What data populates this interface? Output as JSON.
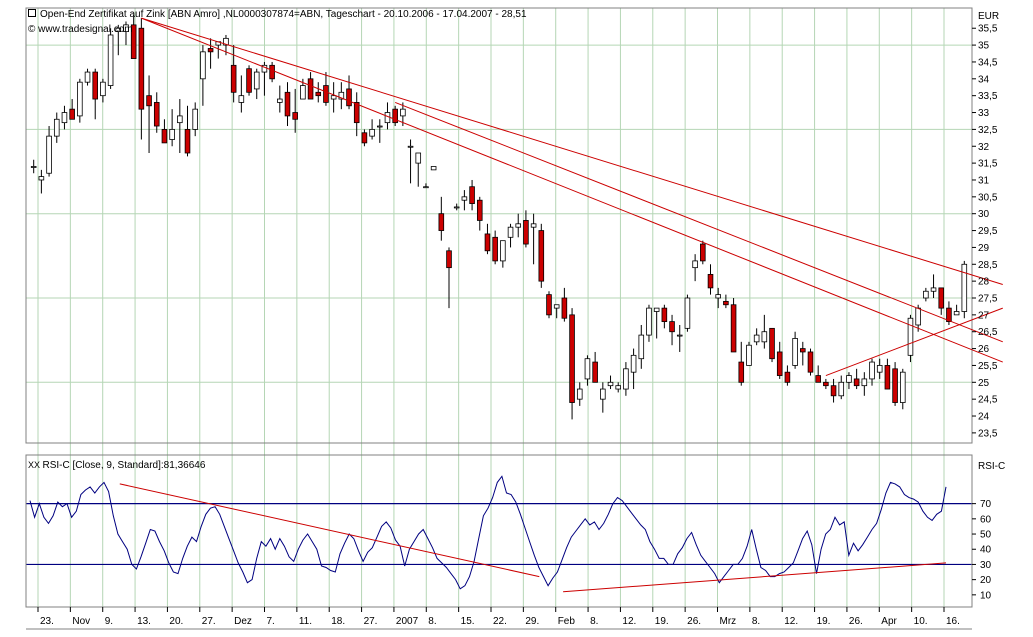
{
  "header": {
    "title": "Open-End Zertifikat auf Zink [ABN Amro] ,NL0000307874=ABN, Tageschart - 20.10.2006 - 17.04.2007 - 28,51",
    "source": "© www.tradesignal.com",
    "currency_label": "EUR",
    "rsi_title": "RSI-C [Close, 9, Standard]:81,36646",
    "rsi_axis_label": "RSI-C"
  },
  "colors": {
    "up_body": "#ffffff",
    "down_body": "#cc0000",
    "wick": "#000000",
    "trend": "#cc0000",
    "rsi_line": "#000080",
    "rsi_levels": "#000080",
    "grid": "#b5d6b5"
  },
  "chart_data": [
    {
      "type": "candlestick",
      "title": "Open-End Zertifikat auf Zink [ABN Amro] ,NL0000307874=ABN, Tageschart - 20.10.2006 - 17.04.2007 - 28,51",
      "ylabel": "EUR",
      "ylim": [
        23.2,
        36.1
      ],
      "y_ticks": [
        23.5,
        24,
        24.5,
        25,
        25.5,
        26,
        26.5,
        27,
        27.5,
        28,
        28.5,
        29,
        29.5,
        30,
        30.5,
        31,
        31.5,
        32,
        32.5,
        33,
        33.5,
        34,
        34.5,
        35,
        35.5
      ],
      "x_ticks": [
        "23.",
        "Nov",
        "9.",
        "13.",
        "20.",
        "27.",
        "Dez",
        "7.",
        "11.",
        "18.",
        "27.",
        "2007",
        "8.",
        "15.",
        "22.",
        "29.",
        "Feb",
        "8.",
        "12.",
        "19.",
        "26.",
        "Mrz",
        "8.",
        "12.",
        "19.",
        "26.",
        "Apr",
        "10.",
        "16."
      ],
      "grid": true,
      "ohlc": [
        [
          31.4,
          31.6,
          31.2,
          31.4
        ],
        [
          31.0,
          31.3,
          30.6,
          31.1
        ],
        [
          31.2,
          32.6,
          31.1,
          32.3
        ],
        [
          32.3,
          33.0,
          32.1,
          32.8
        ],
        [
          32.7,
          33.2,
          32.5,
          33.0
        ],
        [
          33.1,
          33.4,
          32.8,
          32.8
        ],
        [
          32.9,
          34.0,
          32.7,
          33.9
        ],
        [
          33.9,
          34.3,
          33.8,
          34.2
        ],
        [
          34.2,
          34.3,
          32.8,
          33.4
        ],
        [
          33.5,
          34.0,
          33.3,
          33.9
        ],
        [
          33.8,
          35.5,
          33.7,
          35.3
        ],
        [
          35.4,
          35.6,
          34.7,
          35.5
        ],
        [
          35.4,
          35.7,
          35.0,
          35.6
        ],
        [
          35.6,
          35.9,
          34.6,
          34.6
        ],
        [
          35.5,
          35.8,
          32.2,
          33.1
        ],
        [
          33.5,
          34.1,
          31.8,
          33.2
        ],
        [
          33.3,
          33.6,
          32.4,
          32.6
        ],
        [
          32.5,
          32.8,
          32.1,
          32.1
        ],
        [
          32.2,
          33.1,
          32.0,
          32.5
        ],
        [
          32.7,
          33.4,
          31.8,
          32.9
        ],
        [
          32.5,
          33.2,
          31.7,
          31.8
        ],
        [
          32.5,
          33.3,
          32.3,
          33.1
        ],
        [
          34.0,
          35.0,
          33.2,
          34.8
        ],
        [
          34.9,
          35.2,
          34.3,
          34.8
        ],
        [
          35.0,
          35.1,
          34.6,
          35.1
        ],
        [
          35.0,
          35.3,
          34.7,
          35.2
        ],
        [
          34.4,
          35.0,
          33.3,
          33.6
        ],
        [
          33.3,
          34.1,
          33.0,
          33.5
        ],
        [
          34.3,
          34.4,
          33.5,
          33.6
        ],
        [
          33.7,
          34.3,
          33.4,
          34.2
        ],
        [
          34.2,
          34.5,
          33.5,
          34.4
        ],
        [
          34.4,
          34.5,
          33.9,
          34.0
        ],
        [
          33.3,
          33.8,
          33.0,
          33.4
        ],
        [
          33.6,
          33.9,
          32.6,
          32.9
        ],
        [
          33.0,
          33.7,
          32.4,
          32.8
        ],
        [
          33.4,
          34.0,
          33.4,
          33.8
        ],
        [
          34.0,
          34.2,
          33.4,
          33.4
        ],
        [
          33.6,
          33.9,
          33.3,
          33.5
        ],
        [
          33.8,
          34.2,
          33.2,
          33.3
        ],
        [
          33.4,
          33.9,
          33.0,
          33.5
        ],
        [
          33.4,
          33.9,
          33.1,
          33.6
        ],
        [
          33.7,
          34.1,
          33.1,
          33.2
        ],
        [
          33.3,
          33.6,
          32.3,
          32.7
        ],
        [
          32.4,
          32.5,
          32.0,
          32.1
        ],
        [
          32.3,
          32.8,
          32.2,
          32.5
        ],
        [
          32.6,
          32.8,
          32.1,
          32.6
        ],
        [
          32.7,
          33.3,
          32.5,
          33.0
        ],
        [
          33.1,
          33.2,
          32.6,
          32.7
        ],
        [
          32.9,
          33.3,
          32.6,
          33.1
        ],
        [
          32.0,
          32.2,
          30.9,
          32.0
        ],
        [
          31.5,
          31.8,
          30.8,
          31.8
        ],
        [
          30.8,
          30.9,
          30.8,
          30.8
        ],
        [
          31.3,
          31.4,
          31.3,
          31.4
        ],
        [
          30.0,
          30.5,
          29.2,
          29.5
        ],
        [
          28.9,
          29.0,
          27.2,
          28.4
        ],
        [
          30.2,
          30.3,
          30.1,
          30.2
        ],
        [
          30.4,
          30.7,
          30.1,
          30.5
        ],
        [
          30.8,
          31.0,
          30.1,
          30.3
        ],
        [
          30.4,
          30.5,
          29.5,
          29.8
        ],
        [
          29.4,
          29.7,
          28.8,
          28.9
        ],
        [
          29.3,
          29.5,
          28.5,
          28.6
        ],
        [
          28.6,
          29.2,
          28.4,
          29.2
        ],
        [
          29.3,
          29.7,
          29.0,
          29.6
        ],
        [
          29.6,
          30.0,
          29.3,
          29.7
        ],
        [
          29.8,
          30.1,
          29.0,
          29.1
        ],
        [
          29.6,
          30.0,
          28.5,
          29.7
        ],
        [
          29.5,
          29.7,
          27.8,
          28.0
        ],
        [
          27.6,
          27.7,
          26.9,
          27.0
        ],
        [
          27.2,
          27.3,
          26.9,
          27.3
        ],
        [
          27.5,
          27.8,
          26.8,
          26.9
        ],
        [
          27.0,
          27.2,
          23.9,
          24.4
        ],
        [
          24.5,
          25.0,
          24.3,
          24.8
        ],
        [
          25.1,
          25.8,
          24.9,
          25.7
        ],
        [
          25.6,
          25.9,
          25.0,
          25.0
        ],
        [
          24.5,
          25.0,
          24.1,
          24.8
        ],
        [
          24.9,
          25.2,
          24.8,
          25.0
        ],
        [
          24.8,
          25.0,
          24.7,
          24.9
        ],
        [
          24.8,
          25.6,
          24.6,
          25.4
        ],
        [
          25.3,
          26.0,
          24.8,
          25.8
        ],
        [
          25.7,
          26.7,
          25.4,
          26.4
        ],
        [
          26.4,
          27.3,
          26.2,
          27.2
        ],
        [
          27.1,
          27.2,
          26.3,
          27.2
        ],
        [
          27.2,
          27.3,
          26.6,
          26.8
        ],
        [
          26.8,
          27.0,
          26.1,
          26.5
        ],
        [
          26.4,
          26.7,
          25.9,
          26.4
        ],
        [
          26.6,
          27.6,
          26.5,
          27.5
        ],
        [
          28.4,
          28.8,
          28.0,
          28.6
        ],
        [
          29.1,
          29.2,
          28.5,
          28.6
        ],
        [
          28.2,
          28.5,
          27.6,
          27.8
        ],
        [
          27.5,
          27.8,
          27.2,
          27.6
        ],
        [
          27.4,
          27.6,
          27.2,
          27.3
        ],
        [
          27.3,
          27.5,
          25.9,
          25.9
        ],
        [
          25.6,
          26.2,
          24.9,
          25.0
        ],
        [
          25.5,
          26.2,
          25.5,
          26.1
        ],
        [
          26.2,
          26.6,
          26.1,
          26.4
        ],
        [
          26.2,
          27.0,
          26.0,
          26.5
        ],
        [
          26.6,
          26.6,
          25.6,
          25.7
        ],
        [
          25.9,
          26.2,
          25.1,
          25.2
        ],
        [
          25.3,
          25.5,
          24.9,
          25.0
        ],
        [
          25.5,
          26.5,
          25.4,
          26.3
        ],
        [
          26.0,
          26.2,
          25.5,
          25.9
        ],
        [
          25.9,
          26.0,
          25.2,
          25.3
        ],
        [
          25.2,
          25.5,
          25.0,
          25.0
        ],
        [
          25.0,
          25.1,
          24.8,
          24.9
        ],
        [
          24.9,
          25.1,
          24.4,
          24.6
        ],
        [
          24.6,
          25.2,
          24.5,
          25.0
        ],
        [
          25.0,
          25.3,
          24.8,
          25.2
        ],
        [
          25.1,
          25.4,
          24.8,
          24.9
        ],
        [
          24.9,
          25.3,
          24.6,
          25.1
        ],
        [
          25.1,
          25.7,
          24.9,
          25.6
        ],
        [
          25.3,
          25.7,
          25.1,
          25.5
        ],
        [
          25.5,
          25.7,
          24.8,
          24.8
        ],
        [
          25.4,
          25.6,
          24.3,
          24.4
        ],
        [
          24.4,
          25.4,
          24.2,
          25.3
        ],
        [
          25.8,
          27.0,
          25.6,
          26.9
        ],
        [
          26.7,
          27.3,
          26.5,
          27.2
        ],
        [
          27.5,
          27.8,
          27.4,
          27.7
        ],
        [
          27.7,
          28.2,
          27.5,
          27.8
        ],
        [
          27.8,
          27.8,
          27.0,
          27.2
        ],
        [
          27.2,
          27.4,
          26.7,
          26.8
        ],
        [
          27.0,
          27.3,
          27.0,
          27.1
        ],
        [
          27.1,
          28.6,
          26.9,
          28.5
        ]
      ],
      "trendlines_price": [
        {
          "from": [
            14,
            35.8
          ],
          "to": [
            125,
            27.9
          ]
        },
        {
          "from": [
            14,
            35.8
          ],
          "to": [
            125,
            25.6
          ]
        },
        {
          "from": [
            47,
            33.3
          ],
          "to": [
            125,
            26.2
          ]
        },
        {
          "from": [
            103,
            25.2
          ],
          "to": [
            125,
            27.2
          ]
        }
      ]
    },
    {
      "type": "line",
      "title": "RSI-C [Close, 9, Standard]:81,36646",
      "ylabel": "RSI-C",
      "ylim": [
        2,
        102
      ],
      "y_ticks": [
        10,
        20,
        30,
        40,
        50,
        60,
        70
      ],
      "levels": [
        70,
        30
      ],
      "grid": true,
      "series": [
        {
          "name": "RSI-C [Close, 9, Standard]",
          "values": [
            72,
            61,
            70,
            61,
            57,
            62,
            71,
            68,
            70,
            61,
            65,
            76,
            79,
            81,
            77,
            81,
            84,
            78,
            62,
            50,
            45,
            40,
            30,
            27,
            35,
            44,
            53,
            52,
            45,
            39,
            31,
            25,
            24,
            34,
            42,
            48,
            45,
            55,
            63,
            67,
            68,
            63,
            55,
            47,
            39,
            31,
            25,
            18,
            20,
            34,
            45,
            42,
            47,
            40,
            47,
            42,
            35,
            32,
            40,
            46,
            50,
            45,
            40,
            29,
            28,
            26,
            25,
            37,
            44,
            50,
            47,
            39,
            32,
            38,
            41,
            48,
            55,
            58,
            54,
            46,
            42,
            29,
            40,
            45,
            50,
            53,
            47,
            41,
            34,
            31,
            28,
            24,
            20,
            14,
            16,
            22,
            32,
            47,
            62,
            67,
            74,
            84,
            88,
            77,
            76,
            71,
            63,
            54,
            45,
            36,
            28,
            22,
            16,
            21,
            25,
            33,
            41,
            48,
            52,
            56,
            60,
            56,
            58,
            53,
            57,
            63,
            70,
            74,
            72,
            68,
            64,
            60,
            56,
            53,
            45,
            40,
            34,
            34,
            30,
            30,
            37,
            41,
            47,
            51,
            43,
            36,
            32,
            28,
            24,
            18,
            22,
            26,
            30,
            30,
            34,
            42,
            53,
            40,
            28,
            26,
            22,
            22,
            24,
            25,
            28,
            31,
            39,
            47,
            52,
            43,
            24,
            40,
            50,
            53,
            61,
            56,
            58,
            36,
            44,
            39,
            43,
            48,
            53,
            57,
            66,
            77,
            84,
            83,
            81,
            76,
            74,
            73,
            71,
            65,
            61,
            59,
            63,
            65,
            81
          ]
        }
      ],
      "trendlines_rsi": [
        {
          "from_pos": 0.098,
          "from": 83,
          "to_pos": 0.556,
          "to": 22
        },
        {
          "from_pos": 0.582,
          "from": 12,
          "to_pos": 1.0,
          "to": 31
        }
      ]
    }
  ]
}
